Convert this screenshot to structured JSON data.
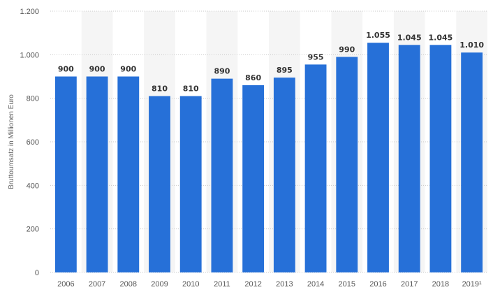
{
  "chart_data": {
    "type": "bar",
    "categories": [
      "2006",
      "2007",
      "2008",
      "2009",
      "2010",
      "2011",
      "2012",
      "2013",
      "2014",
      "2015",
      "2016",
      "2017",
      "2018",
      "2019¹"
    ],
    "values": [
      900,
      900,
      900,
      810,
      810,
      890,
      860,
      895,
      955,
      990,
      1055,
      1045,
      1045,
      1010
    ],
    "value_labels": [
      "900",
      "900",
      "900",
      "810",
      "810",
      "890",
      "860",
      "895",
      "955",
      "990",
      "1.055",
      "1.045",
      "1.045",
      "1.010"
    ],
    "ylabel": "Bruttoumsatz in Millionen Euro",
    "ylim": [
      0,
      1200
    ],
    "yticks": [
      0,
      200,
      400,
      600,
      800,
      1000,
      1200
    ],
    "ytick_labels": [
      "0",
      "200",
      "400",
      "600",
      "800",
      "1.000",
      "1.200"
    ],
    "grid": true,
    "legend": "none",
    "colors": {
      "bar": "#2670d8",
      "band": "#f5f5f5",
      "grid": "#c9c9c9"
    }
  }
}
